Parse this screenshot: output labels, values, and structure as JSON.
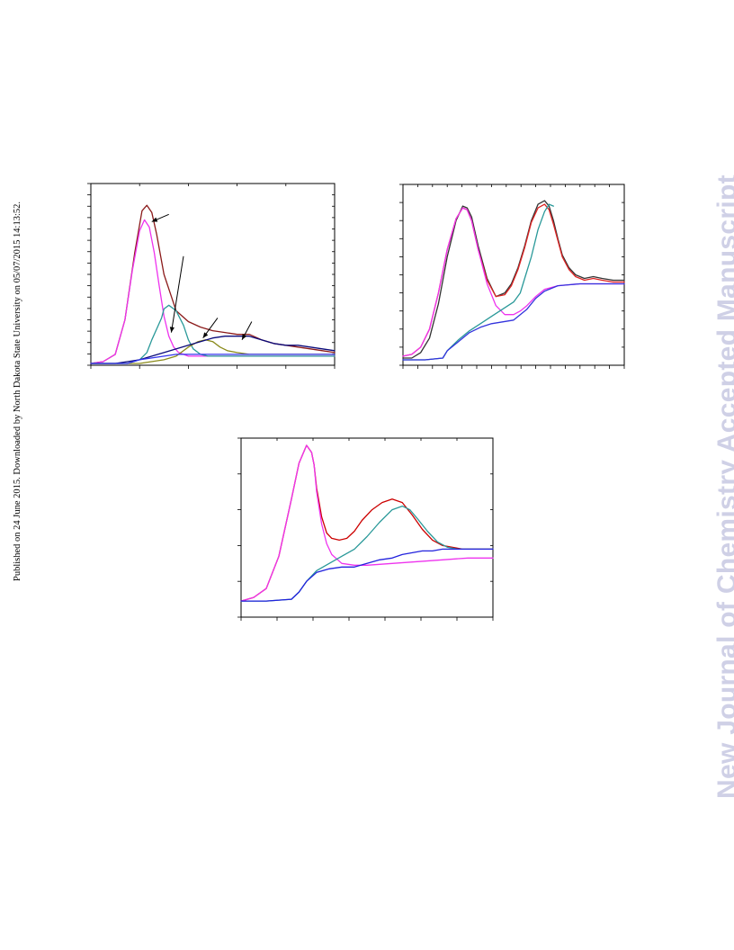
{
  "page": {
    "side_note": "Published on 24 June 2015. Downloaded by North Dakota State University on 05/07/2015 14:13:52.",
    "watermark": "New Journal of Chemistry Accepted Manuscript"
  },
  "chart_data": [
    {
      "type": "line",
      "panel": "top-left",
      "xlim": [
        0,
        100
      ],
      "ylim": [
        0,
        100
      ],
      "grid": false,
      "legend": "none",
      "xticks": [
        0,
        20,
        40,
        60,
        80,
        100
      ],
      "yticks_count": 17,
      "annotations": [
        {
          "label": "arrow",
          "from": [
            32,
            83
          ],
          "to": [
            25,
            79
          ]
        },
        {
          "label": "arrow",
          "from": [
            38,
            60
          ],
          "to": [
            33,
            18
          ]
        },
        {
          "label": "arrow",
          "from": [
            52,
            26
          ],
          "to": [
            46,
            15
          ]
        },
        {
          "label": "arrow",
          "from": [
            66,
            24
          ],
          "to": [
            62,
            14
          ]
        }
      ],
      "series": [
        {
          "color": "#8b1a1a",
          "x": [
            0,
            5,
            10,
            14,
            18,
            21,
            23,
            25,
            27,
            30,
            35,
            40,
            45,
            50,
            55,
            60,
            65,
            70,
            75,
            80,
            85,
            90,
            95,
            100
          ],
          "y": [
            1,
            2,
            6,
            25,
            62,
            85,
            88,
            84,
            72,
            50,
            30,
            24,
            21,
            19,
            18,
            17,
            17,
            14,
            12,
            11,
            10,
            9,
            8,
            7
          ]
        },
        {
          "color": "#ee33ee",
          "x": [
            0,
            5,
            10,
            14,
            17,
            20,
            22,
            24,
            26,
            28,
            30,
            32,
            34,
            36,
            38,
            40,
            45,
            50,
            60,
            80,
            100
          ],
          "y": [
            1,
            2,
            6,
            25,
            52,
            74,
            80,
            76,
            62,
            44,
            27,
            16,
            10,
            7,
            6,
            5,
            5,
            5,
            5,
            5,
            5
          ]
        },
        {
          "color": "#2a9999",
          "x": [
            0,
            15,
            20,
            23,
            25,
            27,
            29,
            30,
            32,
            35,
            38,
            40,
            42,
            45,
            48,
            52,
            60,
            80,
            100
          ],
          "y": [
            1,
            1,
            3,
            7,
            14,
            20,
            26,
            31,
            33,
            30,
            22,
            14,
            9,
            6,
            5,
            5,
            5,
            5,
            5
          ]
        },
        {
          "color": "#8a8a1a",
          "x": [
            0,
            20,
            30,
            35,
            40,
            44,
            47,
            50,
            53,
            56,
            60,
            65,
            70,
            80,
            100
          ],
          "y": [
            1,
            1,
            3,
            5,
            10,
            13,
            14,
            13,
            10,
            8,
            7,
            6,
            6,
            6,
            6
          ]
        },
        {
          "color": "#0a0a7a",
          "x": [
            0,
            10,
            15,
            20,
            30,
            40,
            45,
            50,
            55,
            60,
            65,
            70,
            75,
            80,
            85,
            90,
            95,
            100
          ],
          "y": [
            1,
            1,
            2,
            3,
            7,
            11,
            13,
            15,
            16,
            16,
            16,
            14,
            12,
            11,
            11,
            10,
            9,
            8
          ]
        },
        {
          "color": "#3333ee",
          "x": [
            0,
            15,
            20,
            25,
            30,
            35,
            40,
            60,
            80,
            100
          ],
          "y": [
            1,
            1,
            3,
            4,
            5,
            6,
            6,
            6,
            6,
            6
          ]
        }
      ]
    },
    {
      "type": "line",
      "panel": "top-right",
      "xlim": [
        0,
        100
      ],
      "ylim": [
        0,
        100
      ],
      "grid": false,
      "legend": "none",
      "xticks_count": 16,
      "yticks_count": 11,
      "series": [
        {
          "color": "#333333",
          "x": [
            0,
            4,
            8,
            12,
            16,
            20,
            24,
            27,
            29,
            31,
            34,
            38,
            42,
            46,
            49,
            52,
            55,
            58,
            61,
            64,
            66,
            68,
            70,
            72,
            75,
            78,
            82,
            86,
            90,
            95,
            100
          ],
          "y": [
            4,
            4,
            7,
            15,
            34,
            60,
            80,
            88,
            87,
            82,
            66,
            48,
            38,
            40,
            45,
            54,
            66,
            80,
            89,
            91,
            88,
            80,
            70,
            61,
            54,
            50,
            48,
            49,
            48,
            47,
            47
          ]
        },
        {
          "color": "#dd2222",
          "x": [
            0,
            4,
            8,
            12,
            16,
            20,
            24,
            27,
            29,
            31,
            34,
            38,
            42,
            46,
            49,
            52,
            55,
            58,
            61,
            64,
            66,
            68,
            70,
            72,
            75,
            78,
            82,
            86,
            90,
            95,
            100
          ],
          "y": [
            5,
            6,
            10,
            20,
            40,
            64,
            81,
            87,
            86,
            80,
            64,
            47,
            38,
            39,
            44,
            53,
            65,
            79,
            87,
            89,
            86,
            78,
            69,
            60,
            53,
            49,
            47,
            48,
            47,
            46,
            46
          ]
        },
        {
          "color": "#ee33ee",
          "x": [
            0,
            4,
            8,
            12,
            16,
            20,
            24,
            27,
            29,
            31,
            34,
            38,
            42,
            46,
            50,
            53,
            56,
            60,
            64,
            70,
            80,
            90,
            100
          ],
          "y": [
            5,
            6,
            10,
            20,
            40,
            64,
            81,
            87,
            86,
            80,
            64,
            45,
            33,
            28,
            28,
            30,
            33,
            38,
            42,
            44,
            45,
            45,
            45
          ]
        },
        {
          "color": "#2a9999",
          "x": [
            0,
            10,
            18,
            20,
            25,
            30,
            35,
            40,
            45,
            50,
            53,
            55,
            58,
            61,
            64,
            66,
            68
          ],
          "y": [
            3,
            3,
            4,
            8,
            14,
            19,
            23,
            27,
            31,
            35,
            40,
            48,
            60,
            75,
            85,
            89,
            88
          ]
        },
        {
          "color": "#3333dd",
          "x": [
            0,
            10,
            18,
            20,
            25,
            30,
            35,
            40,
            45,
            50,
            53,
            56,
            60,
            64,
            70,
            80,
            90,
            100
          ],
          "y": [
            3,
            3,
            4,
            8,
            13,
            18,
            21,
            23,
            24,
            25,
            28,
            31,
            37,
            41,
            44,
            45,
            45,
            45
          ]
        }
      ]
    },
    {
      "type": "line",
      "panel": "bottom",
      "xlim": [
        0,
        100
      ],
      "ylim": [
        0,
        100
      ],
      "grid": false,
      "legend": "none",
      "xticks_count": 8,
      "yticks_count": 6,
      "series": [
        {
          "color": "#cc0000",
          "x": [
            0,
            5,
            10,
            15,
            20,
            23,
            26,
            28,
            29,
            30,
            32,
            34,
            36,
            39,
            42,
            45,
            48,
            52,
            56,
            60,
            64,
            68,
            72,
            76,
            80,
            84,
            88,
            92,
            96,
            100
          ],
          "y": [
            9,
            11,
            16,
            34,
            66,
            86,
            96,
            92,
            85,
            72,
            56,
            47,
            44,
            43,
            44,
            48,
            54,
            60,
            64,
            66,
            64,
            57,
            49,
            43,
            40,
            39,
            38,
            38,
            38,
            38
          ]
        },
        {
          "color": "#ee33ee",
          "x": [
            0,
            5,
            10,
            15,
            20,
            23,
            26,
            28,
            29,
            30,
            32,
            34,
            36,
            40,
            45,
            50,
            60,
            70,
            80,
            90,
            100
          ],
          "y": [
            9,
            11,
            16,
            34,
            66,
            86,
            96,
            92,
            85,
            70,
            52,
            41,
            35,
            30,
            29,
            29,
            30,
            31,
            32,
            33,
            33
          ]
        },
        {
          "color": "#2a9999",
          "x": [
            0,
            10,
            20,
            23,
            26,
            30,
            35,
            40,
            45,
            50,
            55,
            60,
            64,
            67,
            70,
            74,
            78,
            82,
            86,
            90,
            95,
            100
          ],
          "y": [
            9,
            9,
            10,
            14,
            20,
            26,
            30,
            34,
            38,
            45,
            53,
            60,
            62,
            60,
            55,
            48,
            42,
            39,
            38,
            38,
            38,
            38
          ]
        },
        {
          "color": "#2222dd",
          "x": [
            0,
            10,
            20,
            23,
            26,
            30,
            35,
            40,
            45,
            50,
            55,
            60,
            64,
            68,
            72,
            76,
            80,
            84,
            88,
            92,
            96,
            100
          ],
          "y": [
            9,
            9,
            10,
            14,
            20,
            25,
            27,
            28,
            28,
            30,
            32,
            33,
            35,
            36,
            37,
            37,
            38,
            38,
            38,
            38,
            38,
            38
          ]
        }
      ]
    }
  ]
}
